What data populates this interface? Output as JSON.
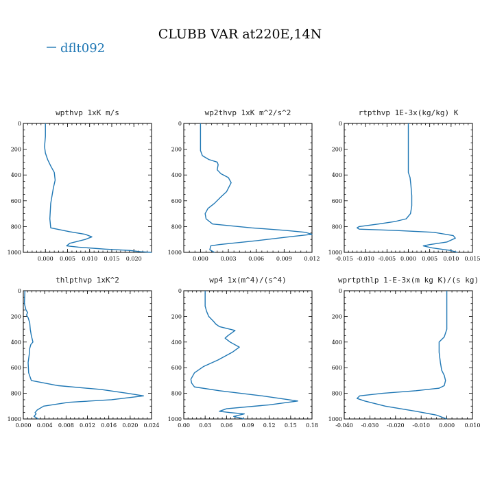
{
  "figure": {
    "title": "CLUBB VAR at220E,14N",
    "legend": {
      "label": "dflt092",
      "color": "#1f77b4"
    }
  },
  "chart_data": [
    {
      "type": "line",
      "title": "wpthvp  1xK m/s",
      "ylim": [
        1000,
        0
      ],
      "xlim": [
        -0.005,
        0.024
      ],
      "xticks": [
        "0.000",
        "0.005",
        "0.010",
        "0.015",
        "0.020"
      ],
      "xtick_values": [
        0,
        0.005,
        0.01,
        0.015,
        0.02
      ],
      "yticks": [
        "0",
        "200",
        "400",
        "600",
        "800",
        "1000"
      ],
      "series": [
        {
          "name": "dflt092",
          "color": "#1f77b4",
          "x": [
            0.0,
            0.0,
            -0.0002,
            0.0,
            0.0005,
            0.0012,
            0.002,
            0.0022,
            0.0018,
            0.0015,
            0.0012,
            0.0011,
            0.001,
            0.0012,
            0.0055,
            0.009,
            0.0105,
            0.009,
            0.0055,
            0.0048,
            0.0075,
            0.0135,
            0.019,
            0.0215,
            0.024
          ],
          "y": [
            0,
            100,
            180,
            230,
            280,
            330,
            380,
            440,
            500,
            560,
            620,
            680,
            740,
            810,
            840,
            860,
            880,
            900,
            930,
            950,
            960,
            975,
            985,
            995,
            1000
          ]
        }
      ]
    },
    {
      "type": "line",
      "title": "wp2thvp  1xK m^2/s^2",
      "ylim": [
        1000,
        0
      ],
      "xlim": [
        -0.0018,
        0.012
      ],
      "xticks": [
        "0.000",
        "0.003",
        "0.006",
        "0.009",
        "0.012"
      ],
      "xtick_values": [
        0,
        0.003,
        0.006,
        0.009,
        0.012
      ],
      "yticks": [
        "0",
        "200",
        "400",
        "600",
        "800",
        "1000"
      ],
      "series": [
        {
          "name": "dflt092",
          "color": "#1f77b4",
          "x": [
            0.0,
            0.0,
            0.0,
            0.0002,
            0.0009,
            0.0018,
            0.0019,
            0.0018,
            0.0022,
            0.003,
            0.0033,
            0.0028,
            0.0022,
            0.0015,
            0.0008,
            0.0005,
            0.0006,
            0.0013,
            0.0055,
            0.0092,
            0.0113,
            0.012,
            0.0095,
            0.006,
            0.002,
            0.0011,
            0.001,
            0.0015
          ],
          "y": [
            0,
            150,
            210,
            250,
            280,
            300,
            320,
            360,
            390,
            420,
            460,
            530,
            570,
            620,
            660,
            700,
            740,
            780,
            810,
            830,
            845,
            860,
            880,
            910,
            940,
            950,
            980,
            1000
          ]
        }
      ]
    },
    {
      "type": "line",
      "title": "rtpthvp  1E-3x(kg/kg) K",
      "ylim": [
        1000,
        0
      ],
      "xlim": [
        -0.015,
        0.015
      ],
      "xticks": [
        "-0.015",
        "-0.010",
        "-0.005",
        "0.000",
        "0.005",
        "0.010",
        "0.015"
      ],
      "xtick_values": [
        -0.015,
        -0.01,
        -0.005,
        0,
        0.005,
        0.01,
        0.015
      ],
      "yticks": [
        "0",
        "200",
        "400",
        "600",
        "800",
        "1000"
      ],
      "series": [
        {
          "name": "dflt092",
          "color": "#1f77b4",
          "x": [
            0.0,
            0.0,
            0.0,
            0.0004,
            0.0006,
            0.0008,
            0.0008,
            0.0005,
            -0.0005,
            -0.003,
            -0.007,
            -0.0115,
            -0.012,
            -0.0115,
            -0.003,
            0.006,
            0.0105,
            0.011,
            0.009,
            0.005,
            0.0035,
            0.0055,
            0.0098,
            0.0115
          ],
          "y": [
            0,
            200,
            380,
            420,
            480,
            560,
            640,
            700,
            740,
            760,
            780,
            800,
            810,
            820,
            830,
            845,
            870,
            890,
            920,
            940,
            950,
            965,
            985,
            1000
          ]
        }
      ]
    },
    {
      "type": "line",
      "title": "thlpthvp  1xK^2",
      "ylim": [
        1000,
        0
      ],
      "xlim": [
        0,
        0.024
      ],
      "xticks": [
        "0.000",
        "0.004",
        "0.008",
        "0.012",
        "0.016",
        "0.020",
        "0.024"
      ],
      "xtick_values": [
        0,
        0.004,
        0.008,
        0.012,
        0.016,
        0.02,
        0.024
      ],
      "yticks": [
        "0",
        "200",
        "400",
        "600",
        "800",
        "1000"
      ],
      "series": [
        {
          "name": "dflt092",
          "color": "#1f77b4",
          "x": [
            0.0003,
            0.0002,
            0.0005,
            0.0008,
            0.0006,
            0.0009,
            0.0012,
            0.0013,
            0.0015,
            0.0018,
            0.0014,
            0.0012,
            0.0011,
            0.0009,
            0.001,
            0.0015,
            0.0065,
            0.0145,
            0.0195,
            0.0225,
            0.0165,
            0.0085,
            0.0038,
            0.0026,
            0.0022,
            0.0024,
            0.002,
            0.0028
          ],
          "y": [
            0,
            100,
            150,
            170,
            190,
            210,
            250,
            300,
            350,
            400,
            420,
            450,
            500,
            560,
            640,
            700,
            740,
            770,
            800,
            820,
            850,
            870,
            900,
            930,
            950,
            960,
            980,
            1000
          ]
        }
      ]
    },
    {
      "type": "line",
      "title": "wp4  1x(m^4)/(s^4)",
      "ylim": [
        1000,
        0
      ],
      "xlim": [
        0,
        0.18
      ],
      "xticks": [
        "0.00",
        "0.03",
        "0.06",
        "0.09",
        "0.12",
        "0.15",
        "0.18"
      ],
      "xtick_values": [
        0,
        0.03,
        0.06,
        0.09,
        0.12,
        0.15,
        0.18
      ],
      "yticks": [
        "0",
        "200",
        "400",
        "600",
        "800",
        "1000"
      ],
      "series": [
        {
          "name": "dflt092",
          "color": "#1f77b4",
          "x": [
            0.03,
            0.03,
            0.032,
            0.035,
            0.042,
            0.045,
            0.05,
            0.072,
            0.062,
            0.058,
            0.065,
            0.078,
            0.068,
            0.048,
            0.028,
            0.015,
            0.01,
            0.011,
            0.015,
            0.05,
            0.11,
            0.16,
            0.12,
            0.06,
            0.05,
            0.065,
            0.085,
            0.07,
            0.085
          ],
          "y": [
            0,
            120,
            160,
            200,
            240,
            260,
            280,
            310,
            350,
            370,
            400,
            440,
            480,
            540,
            590,
            640,
            690,
            720,
            750,
            780,
            820,
            860,
            890,
            920,
            940,
            950,
            960,
            980,
            1000
          ]
        }
      ]
    },
    {
      "type": "line",
      "title": "wprtpthlp  1-E-3x(m kg K)/(s kg)",
      "ylim": [
        1000,
        0
      ],
      "xlim": [
        -0.04,
        0.01
      ],
      "xticks": [
        "-0.040",
        "-0.030",
        "-0.020",
        "-0.010",
        "0.000",
        "0.010"
      ],
      "xtick_values": [
        -0.04,
        -0.03,
        -0.02,
        -0.01,
        0,
        0.01
      ],
      "yticks": [
        "0",
        "200",
        "400",
        "600",
        "800",
        "1000"
      ],
      "series": [
        {
          "name": "dflt092",
          "color": "#1f77b4",
          "x": [
            0.0,
            0.0,
            0.0,
            -0.001,
            -0.003,
            -0.003,
            -0.0025,
            -0.002,
            -0.001,
            -0.0005,
            -0.001,
            -0.003,
            -0.012,
            -0.025,
            -0.034,
            -0.035,
            -0.032,
            -0.024,
            -0.012,
            -0.004,
            0.0
          ],
          "y": [
            0,
            150,
            300,
            360,
            400,
            480,
            560,
            620,
            660,
            700,
            740,
            760,
            780,
            800,
            820,
            840,
            860,
            900,
            940,
            970,
            1000
          ]
        }
      ]
    }
  ]
}
